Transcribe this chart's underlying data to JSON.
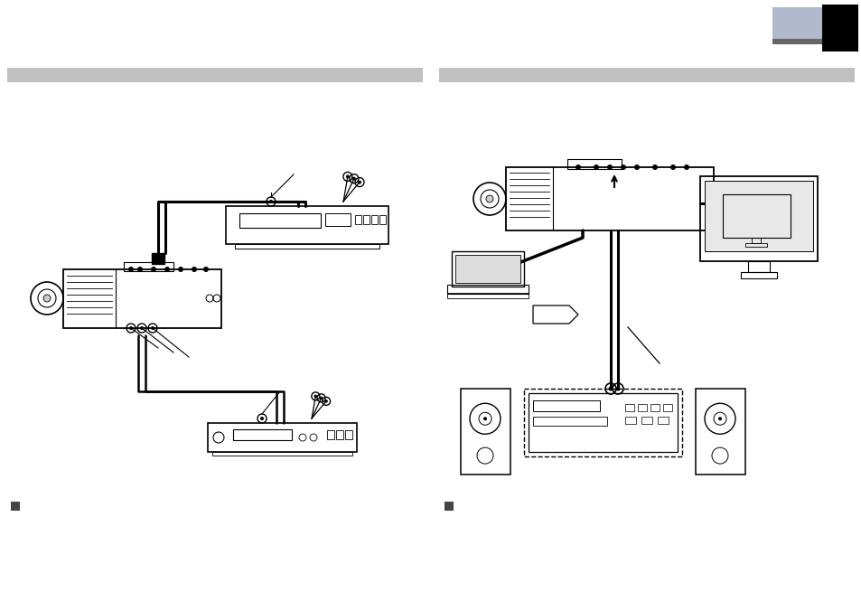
{
  "bg_color": "#ffffff",
  "header_bar_color": "#c0c0c0",
  "page_corner_blue": "#b0b8cc",
  "page_corner_gray": "#666666",
  "page_corner_black": "#000000",
  "note_square_color": "#444444",
  "line_color": "#000000",
  "device_edge_color": "#000000",
  "gray_fill": "#e8e8e8",
  "light_gray_fill": "#f0f0f0"
}
